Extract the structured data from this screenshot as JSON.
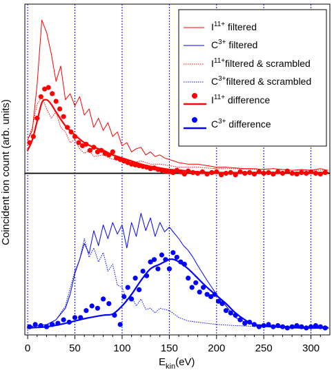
{
  "chart_data": {
    "type": "line",
    "xlabel": {
      "main": "E",
      "sub": "kin",
      "unit": "(eV)"
    },
    "ylabel": "Coincident ion count (arb. units)",
    "xlim": [
      -3,
      320
    ],
    "y_ticks_shown": false,
    "x_ticks": [
      0,
      50,
      100,
      150,
      200,
      250,
      300
    ],
    "x_tick_labels": [
      "0",
      "50",
      "100",
      "150",
      "200",
      "250",
      "300"
    ],
    "vertical_grid": true,
    "colors": {
      "red": "#ff0000",
      "blue": "#0000ff",
      "baseline": "#000000",
      "grid": "#0000ff"
    },
    "legend_position": "top-right",
    "legend": [
      {
        "pre": "I",
        "sup": "11+",
        "post": " filtered",
        "style": "solid-line",
        "color": "#ff0000",
        "weight": "thin"
      },
      {
        "pre": "C",
        "sup": "3+",
        "post": " filtered",
        "style": "solid-line",
        "color": "#0000ff",
        "weight": "thin"
      },
      {
        "pre": "I",
        "sup": "11+",
        "post": "filtered & scrambled",
        "style": "dotted-line",
        "color": "#ff0000",
        "weight": "thin"
      },
      {
        "pre": "C",
        "sup": "3+",
        "post": "filtered & scrambled",
        "style": "dotted-line",
        "color": "#0000ff",
        "weight": "thin"
      },
      {
        "pre": "I",
        "sup": "11+",
        "post": " difference",
        "style": "marker-thick-line",
        "color": "#ff0000",
        "weight": "thick"
      },
      {
        "pre": "C",
        "sup": "3+",
        "post": " difference",
        "style": "marker-thick-line",
        "color": "#0000ff",
        "weight": "thick"
      }
    ],
    "groups": {
      "I11": {
        "ylim": [
          -0.2,
          1.05
        ],
        "baseline": 0,
        "filtered": {
          "x": [
            0,
            5,
            10,
            15,
            20,
            25,
            30,
            35,
            40,
            45,
            50,
            55,
            60,
            65,
            70,
            75,
            80,
            85,
            90,
            95,
            100,
            105,
            110,
            115,
            120,
            125,
            130,
            135,
            140,
            145,
            150,
            160,
            170,
            180,
            190,
            200,
            210,
            220,
            230,
            240,
            250,
            260,
            270,
            280,
            290,
            300,
            310,
            318
          ],
          "y": [
            0.22,
            0.28,
            0.58,
            1.0,
            0.92,
            0.78,
            0.6,
            0.7,
            0.48,
            0.52,
            0.44,
            0.5,
            0.38,
            0.42,
            0.3,
            0.36,
            0.28,
            0.33,
            0.24,
            0.27,
            0.18,
            0.2,
            0.14,
            0.16,
            0.17,
            0.12,
            0.14,
            0.11,
            0.12,
            0.1,
            0.09,
            0.07,
            0.06,
            0.06,
            0.05,
            0.04,
            0.04,
            0.035,
            0.03,
            0.03,
            0.025,
            0.03,
            0.025,
            0.02,
            0.025,
            0.02,
            0.03,
            0.02
          ]
        },
        "scrambled": {
          "x": [
            0,
            5,
            10,
            15,
            20,
            25,
            30,
            35,
            40,
            45,
            50,
            55,
            60,
            65,
            70,
            80,
            90,
            100,
            110,
            120,
            130,
            140,
            150,
            160,
            180,
            200,
            220,
            240,
            260,
            280,
            300,
            318
          ],
          "y": [
            0.22,
            0.3,
            0.45,
            0.5,
            0.42,
            0.36,
            0.4,
            0.3,
            0.27,
            0.2,
            0.22,
            0.16,
            0.13,
            0.15,
            0.11,
            0.12,
            0.09,
            0.1,
            0.07,
            0.08,
            0.06,
            0.06,
            0.05,
            0.04,
            0.04,
            0.03,
            0.03,
            0.025,
            0.03,
            0.02,
            0.02,
            0.02
          ]
        },
        "difference_points": {
          "x": [
            2,
            6,
            10,
            14,
            18,
            22,
            26,
            30,
            34,
            38,
            42,
            46,
            50,
            54,
            58,
            62,
            66,
            70,
            74,
            78,
            82,
            86,
            90,
            94,
            98,
            102,
            106,
            110,
            114,
            118,
            122,
            126,
            130,
            134,
            138,
            142,
            146,
            150,
            154,
            158,
            162,
            166,
            170,
            175,
            180,
            185,
            190,
            195,
            200,
            205,
            210,
            215,
            220,
            225,
            230,
            235,
            240,
            245,
            250,
            255,
            260,
            265,
            270,
            275,
            280,
            285,
            290,
            295,
            300,
            305,
            310,
            315
          ],
          "y": [
            0.2,
            0.24,
            0.36,
            0.5,
            0.55,
            0.56,
            0.52,
            0.47,
            0.42,
            0.37,
            0.3,
            0.27,
            0.24,
            0.2,
            0.18,
            0.19,
            0.15,
            0.17,
            0.14,
            0.15,
            0.13,
            0.12,
            0.14,
            0.1,
            0.09,
            0.08,
            0.07,
            0.06,
            0.055,
            0.05,
            0.045,
            0.04,
            0.03,
            0.035,
            0.025,
            0.02,
            0.015,
            0.01,
            0.005,
            0.02,
            0.01,
            -0.005,
            0.015,
            0.005,
            0.0,
            0.01,
            -0.005,
            0.005,
            0.01,
            -0.01,
            0.0,
            0.005,
            -0.01,
            0.01,
            0.0,
            0.005,
            -0.005,
            0.01,
            0.0,
            0.005,
            -0.005,
            0.01,
            0.0,
            0.015,
            0.0,
            -0.005,
            0.005,
            0.0,
            0.01,
            0.0,
            -0.005,
            0.005
          ]
        },
        "difference_smooth": {
          "x": [
            0,
            5,
            10,
            15,
            20,
            25,
            30,
            40,
            50,
            60,
            70,
            80,
            90,
            100,
            110,
            120,
            130,
            140,
            150,
            160,
            170,
            180,
            200,
            230,
            260,
            290,
            318
          ],
          "y": [
            0.15,
            0.22,
            0.34,
            0.46,
            0.48,
            0.45,
            0.4,
            0.31,
            0.25,
            0.2,
            0.17,
            0.15,
            0.12,
            0.1,
            0.08,
            0.06,
            0.045,
            0.035,
            0.025,
            0.02,
            0.015,
            0.01,
            0.005,
            0.005,
            0.005,
            0.005,
            0.005
          ]
        }
      },
      "C3": {
        "ylim": [
          -0.05,
          1.08
        ],
        "filtered": {
          "x": [
            0,
            10,
            20,
            30,
            40,
            45,
            50,
            55,
            60,
            65,
            70,
            75,
            80,
            85,
            90,
            95,
            100,
            105,
            110,
            115,
            120,
            125,
            130,
            135,
            140,
            145,
            150,
            155,
            160,
            165,
            170,
            175,
            180,
            190,
            200,
            210,
            220,
            230,
            240,
            260,
            280,
            300,
            318
          ],
          "y": [
            0.02,
            0.03,
            0.04,
            0.08,
            0.18,
            0.3,
            0.48,
            0.6,
            0.74,
            0.65,
            0.85,
            0.72,
            0.9,
            0.78,
            0.92,
            0.82,
            0.9,
            0.7,
            0.92,
            0.8,
            1.0,
            0.85,
            0.96,
            0.8,
            0.92,
            0.84,
            0.88,
            0.83,
            0.78,
            0.72,
            0.68,
            0.62,
            0.55,
            0.42,
            0.3,
            0.2,
            0.1,
            0.06,
            0.04,
            0.03,
            0.02,
            0.02,
            0.02
          ]
        },
        "scrambled": {
          "x": [
            0,
            20,
            30,
            40,
            50,
            55,
            60,
            65,
            70,
            75,
            80,
            85,
            90,
            95,
            100,
            105,
            110,
            115,
            120,
            125,
            130,
            135,
            140,
            150,
            160,
            170,
            180,
            200,
            220,
            250,
            280,
            318
          ],
          "y": [
            0.02,
            0.03,
            0.08,
            0.2,
            0.5,
            0.6,
            0.78,
            0.62,
            0.7,
            0.58,
            0.66,
            0.5,
            0.56,
            0.38,
            0.36,
            0.25,
            0.28,
            0.2,
            0.26,
            0.17,
            0.18,
            0.14,
            0.18,
            0.16,
            0.1,
            0.07,
            0.06,
            0.04,
            0.03,
            0.02,
            0.02,
            0.02
          ]
        },
        "difference_points": {
          "x": [
            2,
            8,
            14,
            20,
            26,
            32,
            38,
            44,
            50,
            56,
            62,
            68,
            74,
            80,
            86,
            92,
            98,
            102,
            106,
            110,
            114,
            118,
            122,
            126,
            130,
            134,
            138,
            142,
            146,
            150,
            154,
            158,
            162,
            166,
            170,
            174,
            178,
            182,
            186,
            190,
            194,
            198,
            202,
            206,
            210,
            215,
            220,
            225,
            230,
            235,
            240,
            245,
            250,
            255,
            260,
            265,
            270,
            275,
            280,
            285,
            290,
            295,
            300,
            305,
            310,
            315
          ],
          "y": [
            0.02,
            0.04,
            0.03,
            0.02,
            0.04,
            0.05,
            0.08,
            0.06,
            0.1,
            0.1,
            0.16,
            0.2,
            0.18,
            0.26,
            0.22,
            0.12,
            0.04,
            0.28,
            0.36,
            0.26,
            0.44,
            0.34,
            0.5,
            0.46,
            0.58,
            0.6,
            0.52,
            0.64,
            0.6,
            0.52,
            0.66,
            0.62,
            0.58,
            0.56,
            0.44,
            0.36,
            0.4,
            0.32,
            0.36,
            0.3,
            0.28,
            0.3,
            0.24,
            0.22,
            0.16,
            0.14,
            0.12,
            0.08,
            0.05,
            0.06,
            0.04,
            0.02,
            0.03,
            0.04,
            0.02,
            0.03,
            0.02,
            0.01,
            0.02,
            0.03,
            0.02,
            0.01,
            0.02,
            0.03,
            0.02,
            0.01
          ]
        },
        "difference_smooth": {
          "x": [
            0,
            20,
            40,
            60,
            80,
            90,
            100,
            110,
            120,
            130,
            140,
            150,
            155,
            160,
            170,
            180,
            190,
            200,
            210,
            220,
            230,
            240,
            260,
            290,
            318
          ],
          "y": [
            0.01,
            0.02,
            0.05,
            0.09,
            0.12,
            0.13,
            0.2,
            0.3,
            0.42,
            0.52,
            0.56,
            0.6,
            0.6,
            0.58,
            0.52,
            0.44,
            0.36,
            0.29,
            0.22,
            0.14,
            0.08,
            0.04,
            0.02,
            0.01,
            0.01
          ]
        }
      }
    }
  }
}
